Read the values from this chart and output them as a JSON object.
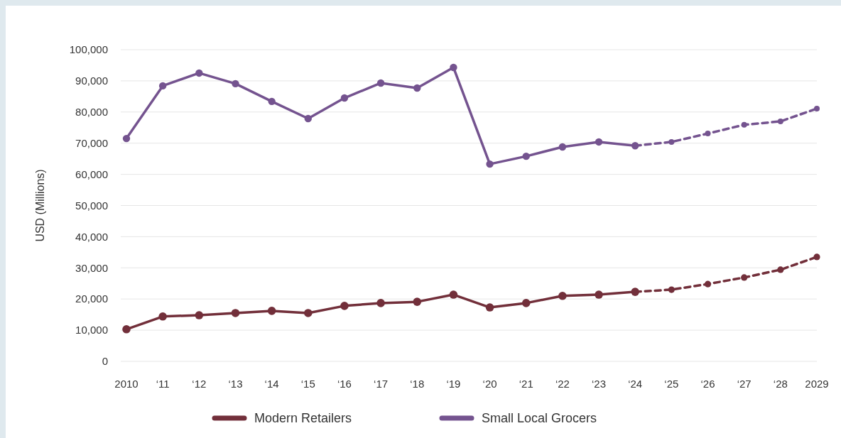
{
  "chart_data": {
    "type": "line",
    "ylabel": "USD (Millions)",
    "categories": [
      "2010",
      "‘11",
      "‘12",
      "‘13",
      "‘14",
      "‘15",
      "‘16",
      "‘17",
      "‘18",
      "‘19",
      "‘20",
      "‘21",
      "‘22",
      "‘23",
      "‘24",
      "‘25",
      "‘26",
      "‘27",
      "‘28",
      "2029"
    ],
    "series": [
      {
        "name": "Modern Retailers",
        "color": "#722f3a",
        "line_style": "solid",
        "values": [
          10300,
          14400,
          14800,
          15500,
          16200,
          15500,
          17800,
          18700,
          19100,
          21400,
          17300,
          18700,
          21000,
          21400,
          22300,
          null,
          null,
          null,
          null,
          null
        ]
      },
      {
        "name": "Small Local Grocers",
        "color": "#74538f",
        "line_style": "solid",
        "values": [
          71500,
          88400,
          92500,
          89100,
          83400,
          77900,
          84500,
          89300,
          87700,
          94300,
          63300,
          65800,
          68800,
          70400,
          69200,
          null,
          null,
          null,
          null,
          null
        ]
      },
      {
        "color": "#722f3a",
        "line_style": "dashed",
        "values": [
          null,
          null,
          null,
          null,
          null,
          null,
          null,
          null,
          null,
          null,
          null,
          null,
          null,
          null,
          22300,
          23000,
          24800,
          26900,
          29400,
          33500
        ]
      },
      {
        "color": "#74538f",
        "line_style": "dashed",
        "values": [
          null,
          null,
          null,
          null,
          null,
          null,
          null,
          null,
          null,
          null,
          null,
          null,
          null,
          null,
          69200,
          70400,
          73100,
          75900,
          77000,
          81100
        ]
      }
    ],
    "ylim": [
      0,
      100000
    ],
    "yticks": [
      {
        "value": 0,
        "label": "0"
      },
      {
        "value": 10000,
        "label": "10,000"
      },
      {
        "value": 20000,
        "label": "20,000"
      },
      {
        "value": 30000,
        "label": "30,000"
      },
      {
        "value": 40000,
        "label": "40,000"
      },
      {
        "value": 50000,
        "label": "50,000"
      },
      {
        "value": 60000,
        "label": "60,000"
      },
      {
        "value": 70000,
        "label": "70,000"
      },
      {
        "value": 80000,
        "label": "80,000"
      },
      {
        "value": 90000,
        "label": "90,000"
      },
      {
        "value": 100000,
        "label": "100,000"
      }
    ],
    "grid": "y",
    "legend": "bottom",
    "marker": "circle"
  }
}
